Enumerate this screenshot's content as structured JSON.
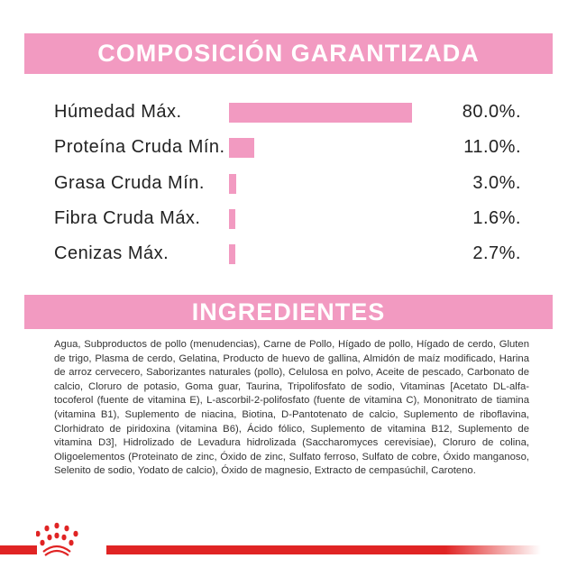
{
  "composition": {
    "title": "COMPOSICIÓN GARANTIZADA",
    "bar_color": "#f29ac1",
    "rows": [
      {
        "label": "Húmedad Máx.",
        "value": "80.0%.",
        "percent": 80.0
      },
      {
        "label": "Proteína Cruda Mín.",
        "value": "11.0%.",
        "percent": 11.0
      },
      {
        "label": "Grasa Cruda Mín.",
        "value": "3.0%.",
        "percent": 3.0
      },
      {
        "label": "Fibra Cruda Máx.",
        "value": "1.6%.",
        "percent": 1.6
      },
      {
        "label": "Cenizas Máx.",
        "value": "2.7%.",
        "percent": 2.7
      }
    ]
  },
  "ingredients": {
    "title": "INGREDIENTES",
    "text": "Agua, Subproductos de pollo (menudencias), Carne de Pollo, Hígado de pollo, Hígado de cerdo, Gluten de trigo, Plasma de cerdo, Gelatina, Producto de huevo de gallina, Almidón de maíz modificado, Harina de arroz cervecero, Saborizantes naturales (pollo), Celulosa en polvo, Aceite de pescado, Carbonato de calcio, Cloruro de potasio, Goma guar, Taurina, Tripolifosfato de sodio, Vitaminas [Acetato DL-alfa-tocoferol (fuente de vitamina E), L-ascorbil-2-polifosfato (fuente de vitamina C), Mononitrato de tiamina (vitamina B1), Suplemento de niacina, Biotina, D-Pantotenato de calcio, Suplemento de riboflavina, Clorhidrato de piridoxina (vitamina B6), Ácido fólico, Suplemento de vitamina B12, Suplemento de vitamina D3], Hidrolizado de Levadura hidrolizada (Saccharomyces cerevisiae), Cloruro de colina, Oligoelementos (Proteinato de zinc, Óxido de zinc, Sulfato ferroso, Sulfato de cobre, Óxido manganoso, Selenito de sodio, Yodato de calcio), Óxido de magnesio, Extracto de cempasúchil, Caroteno."
  },
  "footer": {
    "logo": "royal-canin-crown-icon",
    "brand_color": "#e02424"
  }
}
